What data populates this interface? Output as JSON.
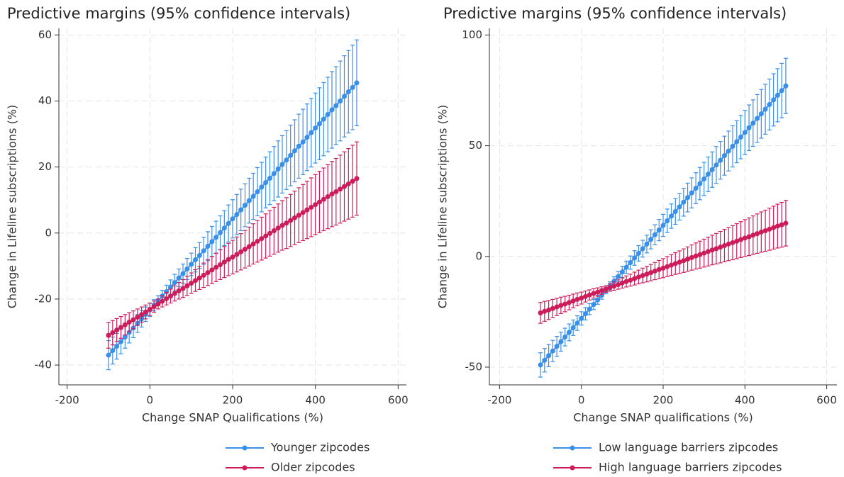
{
  "chart_data": [
    {
      "type": "line",
      "title": "Predictive margins (95% confidence intervals)",
      "x_label": "Change SNAP Qualifications (%)",
      "y_label": "Change in Lifeline subscriptions (%)",
      "xlim": [
        -220,
        620
      ],
      "ylim": [
        -46,
        62
      ],
      "xticks": [
        -200,
        0,
        200,
        400,
        600
      ],
      "yticks": [
        -40,
        -20,
        0,
        20,
        40,
        60
      ],
      "grid": true,
      "x": [
        -100,
        -90,
        -80,
        -70,
        -60,
        -50,
        -40,
        -30,
        -20,
        -10,
        0,
        10,
        20,
        30,
        40,
        50,
        60,
        70,
        80,
        90,
        100,
        110,
        120,
        130,
        140,
        150,
        160,
        170,
        180,
        190,
        200,
        210,
        220,
        230,
        240,
        250,
        260,
        270,
        280,
        290,
        300,
        310,
        320,
        330,
        340,
        350,
        360,
        370,
        380,
        390,
        400,
        410,
        420,
        430,
        440,
        450,
        460,
        470,
        480,
        490,
        500
      ],
      "series": [
        {
          "name": "Younger zipcodes",
          "color": "#3a8fe8",
          "values": [
            -37,
            -35.6,
            -34.3,
            -32.9,
            -31.5,
            -30.1,
            -28.8,
            -27.4,
            -26,
            -24.6,
            -23.3,
            -21.9,
            -20.5,
            -19.1,
            -17.8,
            -16.4,
            -15,
            -13.6,
            -12.3,
            -10.9,
            -9.5,
            -8.1,
            -6.8,
            -5.4,
            -4,
            -2.6,
            -1.3,
            0.1,
            1.5,
            2.9,
            4.3,
            5.6,
            7,
            8.4,
            9.8,
            11.1,
            12.5,
            13.9,
            15.3,
            16.6,
            18,
            19.4,
            20.8,
            22.1,
            23.5,
            24.9,
            26.3,
            27.6,
            29,
            30.4,
            31.8,
            33.1,
            34.5,
            35.9,
            37.3,
            38.6,
            40,
            41.4,
            42.8,
            44.1,
            45.5
          ],
          "errors": [
            4.4,
            4.1,
            3.9,
            3.7,
            3.4,
            3.2,
            2.9,
            2.7,
            2.5,
            2.2,
            2.0,
            1.7,
            1.5,
            1.7,
            2.0,
            2.2,
            2.5,
            2.7,
            2.9,
            3.2,
            3.4,
            3.7,
            3.9,
            4.1,
            4.4,
            4.6,
            4.9,
            5.1,
            5.3,
            5.6,
            5.8,
            6.1,
            6.3,
            6.5,
            6.8,
            7.0,
            7.3,
            7.5,
            7.7,
            8.0,
            8.2,
            8.5,
            8.7,
            8.9,
            9.2,
            9.4,
            9.7,
            9.9,
            10.1,
            10.4,
            10.6,
            10.9,
            11.1,
            11.3,
            11.6,
            11.8,
            12.1,
            12.3,
            12.5,
            12.8,
            13.0
          ]
        },
        {
          "name": "Older zipcodes",
          "color": "#cc1c5a",
          "values": [
            -31,
            -30.2,
            -29.4,
            -28.6,
            -27.8,
            -27.0,
            -26.3,
            -25.5,
            -24.7,
            -23.9,
            -23.1,
            -22.3,
            -21.5,
            -20.7,
            -19.9,
            -19.1,
            -18.3,
            -17.5,
            -16.8,
            -16.0,
            -15.2,
            -14.4,
            -13.6,
            -12.8,
            -12.0,
            -11.2,
            -10.4,
            -9.6,
            -8.8,
            -8.0,
            -7.3,
            -6.5,
            -5.7,
            -4.9,
            -4.1,
            -3.3,
            -2.5,
            -1.7,
            -0.9,
            -0.1,
            0.7,
            1.5,
            2.3,
            3.0,
            3.8,
            4.6,
            5.4,
            6.2,
            7.0,
            7.8,
            8.6,
            9.4,
            10.2,
            11.0,
            11.8,
            12.5,
            13.3,
            14.1,
            14.9,
            15.7,
            16.5
          ],
          "errors": [
            3.9,
            3.7,
            3.5,
            3.3,
            3.1,
            2.9,
            2.7,
            2.5,
            2.3,
            2.1,
            1.9,
            1.7,
            1.5,
            1.7,
            1.9,
            2.1,
            2.3,
            2.5,
            2.7,
            2.9,
            3.1,
            3.3,
            3.5,
            3.7,
            3.9,
            4.1,
            4.3,
            4.5,
            4.7,
            4.9,
            5.1,
            5.3,
            5.5,
            5.7,
            5.9,
            6.1,
            6.3,
            6.5,
            6.7,
            6.9,
            7.1,
            7.3,
            7.5,
            7.7,
            7.9,
            8.1,
            8.3,
            8.5,
            8.7,
            8.9,
            9.1,
            9.3,
            9.5,
            9.7,
            9.9,
            10.1,
            10.3,
            10.5,
            10.7,
            10.9,
            11.1
          ]
        }
      ]
    },
    {
      "type": "line",
      "title": "Predictive margins (95% confidence intervals)",
      "x_label": "Change SNAP qualifications (%)",
      "y_label": "Change in Lifeline subscriptions (%)",
      "xlim": [
        -225,
        625
      ],
      "ylim": [
        -58,
        103
      ],
      "xticks": [
        -200,
        0,
        200,
        400,
        600
      ],
      "yticks": [
        -50,
        0,
        50,
        100
      ],
      "grid": true,
      "x": [
        -100,
        -90,
        -80,
        -70,
        -60,
        -50,
        -40,
        -30,
        -20,
        -10,
        0,
        10,
        20,
        30,
        40,
        50,
        60,
        70,
        80,
        90,
        100,
        110,
        120,
        130,
        140,
        150,
        160,
        170,
        180,
        190,
        200,
        210,
        220,
        230,
        240,
        250,
        260,
        270,
        280,
        290,
        300,
        310,
        320,
        330,
        340,
        350,
        360,
        370,
        380,
        390,
        400,
        410,
        420,
        430,
        440,
        450,
        460,
        470,
        480,
        490,
        500
      ],
      "series": [
        {
          "name": "Low language barriers zipcodes",
          "color": "#3a8fe8",
          "values": [
            -49,
            -46.9,
            -44.8,
            -42.7,
            -40.6,
            -38.5,
            -36.4,
            -34.3,
            -32.2,
            -30.1,
            -28,
            -25.9,
            -23.8,
            -21.7,
            -19.6,
            -17.5,
            -15.4,
            -13.3,
            -11.2,
            -9.1,
            -7,
            -4.9,
            -2.8,
            -0.7,
            1.4,
            3.5,
            5.6,
            7.7,
            9.8,
            11.9,
            14,
            16.1,
            18.2,
            20.3,
            22.4,
            24.5,
            26.6,
            28.7,
            30.8,
            32.9,
            35,
            37.1,
            39.2,
            41.3,
            43.4,
            45.5,
            47.6,
            49.7,
            51.8,
            53.9,
            56,
            58.1,
            60.2,
            62.3,
            64.4,
            66.5,
            68.6,
            70.7,
            72.8,
            74.9,
            77
          ],
          "errors": [
            5.5,
            5.3,
            5,
            4.8,
            4.5,
            4.3,
            4,
            3.8,
            3.5,
            3.3,
            3,
            2.8,
            2.5,
            2.3,
            2,
            1.8,
            1.5,
            1.8,
            2,
            2.3,
            2.5,
            2.8,
            3,
            3.3,
            3.5,
            3.8,
            4,
            4.3,
            4.5,
            4.8,
            5,
            5.3,
            5.5,
            5.8,
            6,
            6.3,
            6.5,
            6.8,
            7,
            7.3,
            7.5,
            7.8,
            8,
            8.3,
            8.5,
            8.8,
            9,
            9.3,
            9.5,
            9.8,
            10,
            10.3,
            10.5,
            10.8,
            11,
            11.3,
            11.5,
            11.8,
            12,
            12.3,
            12.5
          ]
        },
        {
          "name": "High language barriers zipcodes",
          "color": "#cc1c5a",
          "values": [
            -25.5,
            -24.8,
            -24.2,
            -23.5,
            -22.8,
            -22.1,
            -21.5,
            -20.8,
            -20.1,
            -19.4,
            -18.8,
            -18.1,
            -17.4,
            -16.7,
            -16.1,
            -15.4,
            -14.7,
            -14.0,
            -13.4,
            -12.7,
            -12.0,
            -11.3,
            -10.7,
            -10.0,
            -9.3,
            -8.6,
            -8.0,
            -7.3,
            -6.6,
            -5.9,
            -5.3,
            -4.6,
            -3.9,
            -3.2,
            -2.6,
            -1.9,
            -1.2,
            -0.5,
            0.2,
            0.8,
            1.5,
            2.2,
            2.9,
            3.5,
            4.2,
            4.9,
            5.6,
            6.2,
            6.9,
            7.6,
            8.3,
            8.9,
            9.6,
            10.3,
            11.0,
            11.6,
            12.3,
            13.0,
            13.7,
            14.3,
            15.0
          ],
          "errors": [
            4.7,
            4.5,
            4.3,
            4.1,
            3.9,
            3.7,
            3.5,
            3.3,
            3.1,
            2.9,
            2.7,
            2.5,
            2.3,
            2.1,
            1.9,
            1.7,
            1.5,
            1.7,
            1.9,
            2.1,
            2.3,
            2.5,
            2.7,
            2.9,
            3.1,
            3.3,
            3.5,
            3.7,
            3.9,
            4.1,
            4.3,
            4.5,
            4.7,
            4.9,
            5.1,
            5.3,
            5.5,
            5.7,
            5.9,
            6.1,
            6.3,
            6.5,
            6.7,
            6.9,
            7.1,
            7.3,
            7.5,
            7.7,
            7.9,
            8.1,
            8.3,
            8.5,
            8.7,
            8.9,
            9.1,
            9.3,
            9.5,
            9.7,
            9.9,
            10.1,
            10.3
          ]
        }
      ]
    }
  ]
}
